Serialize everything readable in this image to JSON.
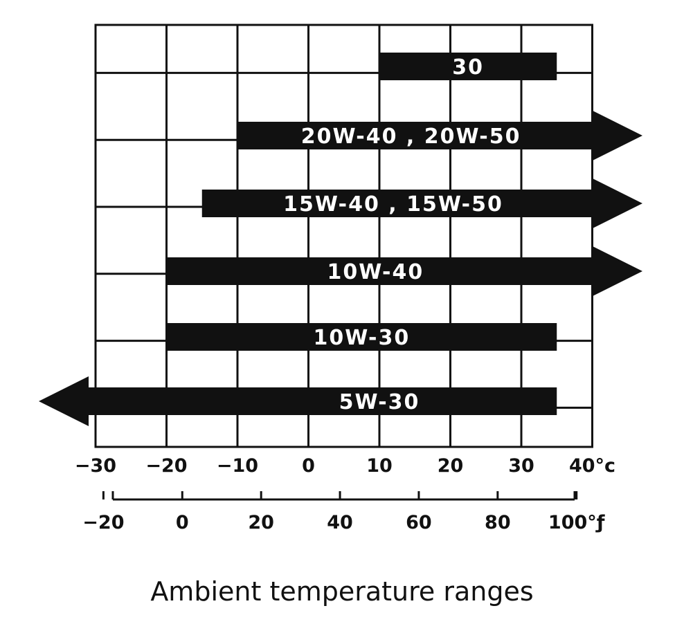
{
  "chart_data": {
    "type": "bar",
    "subtype": "horizontal-range",
    "caption": "Ambient temperature ranges",
    "x_axis_celsius": {
      "range": [
        -30,
        40
      ],
      "ticks": [
        -30,
        -20,
        -10,
        0,
        10,
        20,
        30,
        40
      ],
      "tick_labels": [
        "−30",
        "−20",
        "−10",
        "0",
        "10",
        "20",
        "30",
        "40°c"
      ]
    },
    "x_axis_fahrenheit": {
      "ticks": [
        -20,
        0,
        20,
        40,
        60,
        80,
        100
      ],
      "tick_labels": [
        "−20",
        "0",
        "20",
        "40",
        "60",
        "80",
        "100°ƒ"
      ]
    },
    "grid": true,
    "series": [
      {
        "name": "30",
        "min_c": 10,
        "max_c": 35,
        "open_low": false,
        "open_high": false
      },
      {
        "name": "20W-40 , 20W-50",
        "min_c": -10,
        "max_c": 50,
        "open_low": false,
        "open_high": true
      },
      {
        "name": "15W-40 , 15W-50",
        "min_c": -15,
        "max_c": 50,
        "open_low": false,
        "open_high": true
      },
      {
        "name": "10W-40",
        "min_c": -20,
        "max_c": 50,
        "open_low": false,
        "open_high": true
      },
      {
        "name": "10W-30",
        "min_c": -20,
        "max_c": 35,
        "open_low": false,
        "open_high": false
      },
      {
        "name": "5W-30",
        "min_c": -40,
        "max_c": 35,
        "open_low": true,
        "open_high": false
      }
    ]
  }
}
